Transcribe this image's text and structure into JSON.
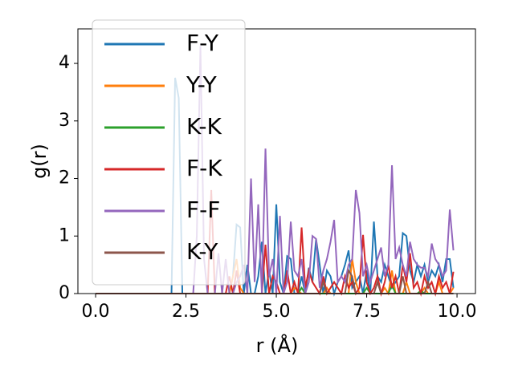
{
  "chart_data": {
    "type": "line",
    "xlabel": "r (Å)",
    "ylabel": "g(r)",
    "xlim": [
      -0.49,
      10.51
    ],
    "ylim": [
      0,
      4.6
    ],
    "xticks": [
      {
        "value": 0,
        "label": "0.0"
      },
      2.5,
      {
        "value": 5,
        "label": "5.0"
      },
      7.5,
      {
        "value": 10,
        "label": "10.0"
      }
    ],
    "yticks": [
      0,
      1,
      2,
      3,
      4
    ],
    "legend": "upper left",
    "x": [
      0,
      0.1,
      0.2,
      0.3,
      0.4,
      0.5,
      0.6,
      0.7,
      0.8,
      0.9,
      1,
      1.1,
      1.2,
      1.3,
      1.4,
      1.5,
      1.6,
      1.7,
      1.8,
      1.9,
      2,
      2.1,
      2.2,
      2.3,
      2.4,
      2.5,
      2.6,
      2.7,
      2.8,
      2.9,
      3,
      3.1,
      3.2,
      3.3,
      3.4,
      3.5,
      3.6,
      3.7,
      3.8,
      3.9,
      4,
      4.1,
      4.2,
      4.3,
      4.4,
      4.5,
      4.6,
      4.7,
      4.8,
      4.9,
      5,
      5.1,
      5.2,
      5.3,
      5.4,
      5.5,
      5.6,
      5.7,
      5.8,
      5.9,
      6,
      6.1,
      6.2,
      6.3,
      6.4,
      6.5,
      6.6,
      6.7,
      6.8,
      6.9,
      7,
      7.1,
      7.2,
      7.3,
      7.4,
      7.5,
      7.6,
      7.7,
      7.8,
      7.9,
      8,
      8.1,
      8.2,
      8.3,
      8.4,
      8.5,
      8.6,
      8.7,
      8.8,
      8.9,
      9,
      9.1,
      9.2,
      9.3,
      9.4,
      9.5,
      9.6,
      9.7,
      9.8,
      9.9
    ],
    "series": [
      {
        "name": "F-Y",
        "color": "#1f77b4",
        "values": [
          0,
          0,
          0,
          0,
          0,
          0,
          0,
          0,
          0,
          0,
          0,
          0,
          0,
          0,
          0,
          0,
          0,
          0,
          0,
          0,
          0,
          0,
          3.75,
          3.4,
          0,
          0,
          0,
          0,
          0,
          0,
          0,
          0,
          0,
          0,
          0,
          0,
          0,
          0,
          0.3,
          1.2,
          1.15,
          0,
          0.5,
          0,
          0,
          0.3,
          0.9,
          0,
          0.4,
          0,
          1.55,
          0.2,
          0,
          0.65,
          0.6,
          0,
          0,
          0.3,
          0,
          0.45,
          0.2,
          0.95,
          0.5,
          0,
          0.4,
          0.3,
          0,
          0.2,
          0.3,
          0.5,
          0.75,
          0.1,
          0.2,
          0.3,
          0,
          0.4,
          0,
          1.25,
          0.3,
          0.2,
          0.5,
          0.3,
          0.1,
          0.2,
          0.3,
          1.05,
          1.0,
          0.4,
          0.2,
          0.5,
          0.3,
          0.5,
          0.2,
          0.4,
          0.3,
          0.5,
          0.2,
          0.6,
          0.6,
          0.1
        ]
      },
      {
        "name": "Y-Y",
        "color": "#ff7f0e",
        "values": [
          0,
          0,
          0,
          0,
          0,
          0,
          0,
          0,
          0,
          0,
          0,
          0,
          0,
          0,
          0,
          0,
          0,
          0,
          0,
          0,
          0,
          0,
          0,
          0,
          0,
          0,
          0,
          0,
          0,
          0,
          0,
          0,
          0,
          0,
          0,
          0,
          0,
          0,
          0.3,
          0.6,
          0.1,
          0,
          0,
          0,
          0,
          0,
          0,
          0,
          0,
          0,
          0,
          0,
          0,
          0,
          0,
          0.1,
          0.05,
          0,
          0,
          0,
          0,
          0,
          0,
          0,
          0.1,
          0,
          0,
          0,
          0,
          0,
          0,
          0.6,
          0.2,
          0,
          0,
          0,
          0,
          0,
          0,
          0,
          0.1,
          0,
          0.4,
          0,
          0,
          0,
          0.2,
          0,
          0,
          0,
          0,
          0.1,
          0,
          0,
          0,
          0.2,
          0,
          0,
          0,
          0.1
        ]
      },
      {
        "name": "K-K",
        "color": "#2ca02c",
        "values": [
          0,
          0,
          0,
          0,
          0,
          0,
          0,
          0,
          0,
          0,
          0,
          0,
          0,
          0,
          0,
          0,
          0,
          0,
          0,
          0,
          0,
          0,
          0,
          0,
          0,
          0,
          0,
          0,
          0,
          0,
          0,
          0,
          0,
          0,
          0,
          0,
          0,
          0,
          0,
          0,
          0,
          0,
          0,
          0,
          0,
          0,
          0,
          0,
          0,
          0,
          0,
          0,
          0,
          0,
          0,
          0,
          0,
          0.1,
          0,
          0,
          0,
          0,
          0,
          0,
          0,
          0,
          0,
          0,
          0,
          0,
          0,
          0,
          0,
          0,
          0,
          0.1,
          0,
          0,
          0,
          0,
          0,
          0,
          0.15,
          0,
          0,
          0,
          0,
          0,
          0,
          0,
          0.05,
          0,
          0,
          0,
          0,
          0,
          0,
          0,
          0,
          0
        ]
      },
      {
        "name": "F-K",
        "color": "#d62728",
        "values": [
          0,
          0,
          0,
          0,
          0,
          0,
          0,
          0,
          0,
          0,
          0,
          0,
          0,
          0,
          0,
          0,
          0,
          0,
          0,
          0,
          0,
          0,
          0,
          0,
          0,
          0,
          0,
          0,
          0,
          0,
          0,
          0,
          1.8,
          0,
          0,
          0,
          0,
          0.3,
          0,
          0.4,
          0,
          0,
          0,
          0,
          0,
          0,
          0,
          0.85,
          0,
          0.3,
          0.2,
          0,
          0,
          0.4,
          0,
          0.2,
          0,
          1.15,
          0.1,
          0.4,
          0.2,
          0.1,
          0,
          0.3,
          0,
          0.1,
          0.2,
          0.1,
          0,
          0.3,
          0.1,
          0.2,
          0,
          0.1,
          1.02,
          0.2,
          0,
          0.1,
          0.3,
          0,
          0.2,
          0.5,
          0.1,
          0.3,
          0,
          0.5,
          0.2,
          0.7,
          0.1,
          0.2,
          0,
          0.3,
          0.1,
          0.2,
          0,
          0.3,
          0.1,
          0.2,
          0,
          0.38
        ]
      },
      {
        "name": "F-F",
        "color": "#9467bd",
        "values": [
          0,
          0,
          0,
          0,
          0,
          0,
          0,
          0,
          0,
          0,
          0,
          0,
          0,
          0,
          0,
          0,
          0,
          0,
          0,
          0,
          0,
          0,
          0,
          0,
          0,
          0,
          0,
          0,
          1.0,
          4.3,
          0.6,
          0,
          0,
          0,
          0.7,
          0,
          0.6,
          0,
          0,
          0.2,
          0.3,
          0.5,
          0,
          2.0,
          0.2,
          1.55,
          0,
          2.52,
          0.3,
          0.6,
          0,
          1.35,
          0,
          0.2,
          1.25,
          0.4,
          0.3,
          0.6,
          0,
          0.2,
          1.0,
          0.95,
          0.1,
          0.4,
          0.6,
          0.9,
          1.28,
          0.2,
          0.3,
          0.2,
          0.5,
          0.6,
          1.8,
          1.4,
          0.3,
          0.5,
          0.2,
          0.4,
          0.6,
          0.8,
          0.3,
          0.5,
          2.23,
          0.6,
          0.8,
          0.5,
          0.3,
          0.9,
          0.6,
          0.5,
          0.45,
          0.45,
          0.3,
          0.87,
          0.6,
          0.5,
          0.3,
          0.4,
          1.46,
          0.75
        ]
      },
      {
        "name": "K-Y",
        "color": "#8c564b",
        "values": [
          0,
          0,
          0,
          0,
          0,
          0,
          0,
          0,
          0,
          0,
          0,
          0,
          0,
          0,
          0,
          0,
          0,
          0,
          0,
          0,
          0,
          0,
          0,
          0,
          0,
          0,
          0,
          0,
          0,
          0,
          0,
          0,
          0,
          0,
          0,
          0,
          0,
          0,
          0,
          0,
          0,
          0,
          0,
          0,
          0,
          0,
          0,
          0,
          0,
          0,
          0,
          0,
          0,
          0,
          0,
          0,
          0,
          0,
          0,
          0,
          0,
          0,
          0,
          0.2,
          0,
          0,
          0,
          0,
          0,
          0,
          0.4,
          0.3,
          0,
          0,
          0,
          0,
          0,
          0,
          0.2,
          0,
          0,
          0,
          0,
          0,
          0,
          0.3,
          0,
          0,
          0,
          0,
          0,
          0,
          0.2,
          0,
          0,
          0,
          0,
          0,
          0,
          0
        ]
      }
    ]
  }
}
